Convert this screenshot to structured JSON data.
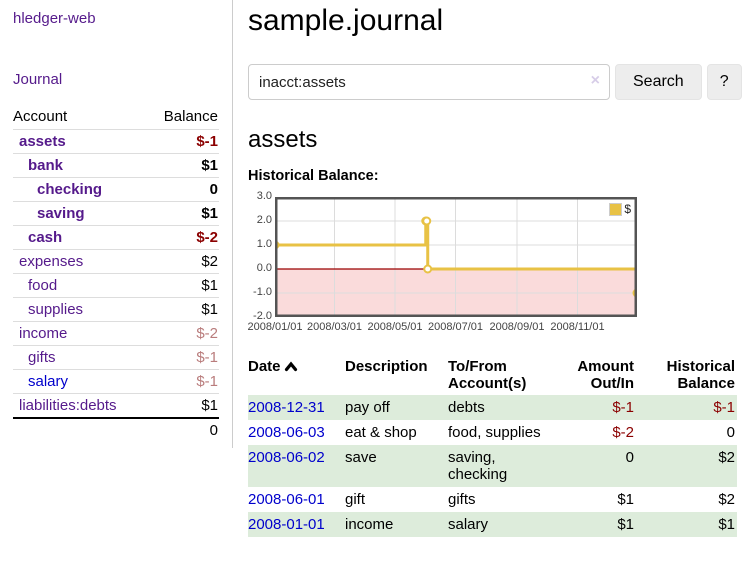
{
  "app": {
    "title": "hledger-web",
    "nav_journal": "Journal"
  },
  "sidebar": {
    "header": {
      "account": "Account",
      "balance": "Balance"
    },
    "accounts": [
      {
        "name": "assets",
        "balance": "$-1",
        "level": 1,
        "bold": true,
        "tone": "neg"
      },
      {
        "name": "bank",
        "balance": "$1",
        "level": 2,
        "bold": true,
        "tone": ""
      },
      {
        "name": "checking",
        "balance": "0",
        "level": 3,
        "bold": true,
        "tone": ""
      },
      {
        "name": "saving",
        "balance": "$1",
        "level": 3,
        "bold": true,
        "tone": ""
      },
      {
        "name": "cash",
        "balance": "$-2",
        "level": 2,
        "bold": true,
        "tone": "neg"
      },
      {
        "name": "expenses",
        "balance": "$2",
        "level": 1,
        "bold": false,
        "tone": ""
      },
      {
        "name": "food",
        "balance": "$1",
        "level": 2,
        "bold": false,
        "tone": ""
      },
      {
        "name": "supplies",
        "balance": "$1",
        "level": 2,
        "bold": false,
        "tone": ""
      },
      {
        "name": "income",
        "balance": "$-2",
        "level": 1,
        "bold": false,
        "tone": "dim"
      },
      {
        "name": "gifts",
        "balance": "$-1",
        "level": 2,
        "bold": false,
        "tone": "dim"
      },
      {
        "name": "salary",
        "balance": "$-1",
        "level": 2,
        "bold": false,
        "tone": "dim",
        "link": "blue"
      },
      {
        "name": "liabilities:debts",
        "balance": "$1",
        "level": 1,
        "bold": false,
        "tone": ""
      }
    ],
    "total": "0"
  },
  "main": {
    "title": "sample.journal",
    "search": {
      "query": "inacct:assets",
      "clear_icon": "×",
      "button": "Search",
      "help_button": "?"
    },
    "account_heading": "assets",
    "chart_label": "Historical Balance:",
    "register": {
      "columns": [
        "Date",
        "Description",
        "To/From Account(s)",
        "Amount Out/In",
        "Historical Balance"
      ],
      "sort_column": "Date",
      "sort_direction": "ascending",
      "rows": [
        {
          "date": "2008-12-31",
          "description": "pay off",
          "accounts": "debts",
          "amount": "$-1",
          "balance": "$-1"
        },
        {
          "date": "2008-06-03",
          "description": "eat & shop",
          "accounts": "food, supplies",
          "amount": "$-2",
          "balance": "0"
        },
        {
          "date": "2008-06-02",
          "description": "save",
          "accounts": "saving, checking",
          "amount": "0",
          "balance": "$2"
        },
        {
          "date": "2008-06-01",
          "description": "gift",
          "accounts": "gifts",
          "amount": "$1",
          "balance": "$2"
        },
        {
          "date": "2008-01-01",
          "description": "income",
          "accounts": "salary",
          "amount": "$1",
          "balance": "$1"
        }
      ]
    }
  },
  "chart_data": {
    "type": "line",
    "title": "Historical Balance",
    "step": true,
    "grid": true,
    "legend_position": "top-right",
    "xlim": [
      0,
      365
    ],
    "ylim": [
      -2,
      3
    ],
    "series": [
      {
        "name": "$",
        "color": "#e8c245",
        "points": [
          {
            "date": "2008-01-01",
            "day": 0,
            "value": 1
          },
          {
            "date": "2008-06-01",
            "day": 152,
            "value": 2
          },
          {
            "date": "2008-06-02",
            "day": 153,
            "value": 2
          },
          {
            "date": "2008-06-03",
            "day": 154,
            "value": 0
          },
          {
            "date": "2008-12-31",
            "day": 365,
            "value": -1
          }
        ]
      }
    ],
    "xticks": [
      {
        "day": 0,
        "label": "2008/01/01"
      },
      {
        "day": 60,
        "label": "2008/03/01"
      },
      {
        "day": 121,
        "label": "2008/05/01"
      },
      {
        "day": 182,
        "label": "2008/07/01"
      },
      {
        "day": 244,
        "label": "2008/09/01"
      },
      {
        "day": 305,
        "label": "2008/11/01"
      }
    ],
    "yticks": [
      {
        "value": 3,
        "label": "3.0"
      },
      {
        "value": 2,
        "label": "2.0"
      },
      {
        "value": 1,
        "label": "1.0"
      },
      {
        "value": 0,
        "label": "0.0"
      },
      {
        "value": -1,
        "label": "-1.0"
      },
      {
        "value": -2,
        "label": "-2.0"
      }
    ],
    "negative_region_fill": "#fadbdb",
    "zero_line_color": "#9b0000"
  },
  "colors": {
    "accent_purple": "#551a8b",
    "link_blue": "#0000cc",
    "negative": "#8b0000",
    "negative_dim": "#b97c7c",
    "row_stripe_green": "#ddecdb",
    "chart_line": "#e8c245",
    "chart_negative_fill": "#fadbdb",
    "chart_zero_line": "#9b0000"
  },
  "icons": {
    "sort_ascending": "chevron-up",
    "clear_search": "x-mark",
    "legend_swatch": "yellow-square"
  }
}
